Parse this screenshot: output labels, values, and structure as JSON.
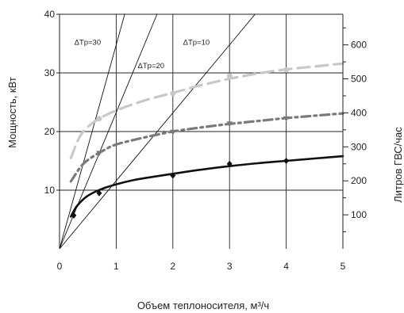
{
  "chart_data": {
    "type": "line",
    "xlabel": "Объем теплоносителя, м³/ч",
    "ylabel": "Мощность, кВт",
    "y2label": "Литров ГВС/час",
    "xlim": [
      0,
      5
    ],
    "ylim": [
      0,
      40
    ],
    "y2lim": [
      0,
      690
    ],
    "x_ticks": [
      0,
      1,
      2,
      3,
      4,
      5
    ],
    "y_ticks": [
      10,
      20,
      30,
      40
    ],
    "y2_ticks": [
      100,
      200,
      300,
      400,
      500,
      600
    ],
    "grid": true,
    "series": [
      {
        "kind": "reference_line",
        "label": "ΔTp=30",
        "x": [
          0,
          1.15
        ],
        "y": [
          0,
          40
        ],
        "color": "#111111"
      },
      {
        "kind": "reference_line",
        "label": "ΔTp=20",
        "x": [
          0,
          1.72
        ],
        "y": [
          0,
          40
        ],
        "color": "#111111"
      },
      {
        "kind": "reference_line",
        "label": "ΔTp=10",
        "x": [
          0,
          3.45
        ],
        "y": [
          0,
          40
        ],
        "color": "#111111"
      },
      {
        "kind": "curve",
        "style": "solid",
        "color": "#111111",
        "marker": "diamond",
        "x": [
          0.2,
          0.3,
          0.45,
          0.6,
          0.8,
          1.0,
          1.3,
          1.6,
          2.0,
          2.5,
          3.0,
          3.5,
          4.0,
          4.5,
          5.0
        ],
        "y": [
          5.5,
          7.2,
          8.7,
          9.6,
          10.4,
          11.0,
          11.7,
          12.2,
          12.8,
          13.5,
          14.1,
          14.6,
          15.0,
          15.4,
          15.8
        ],
        "points_x": [
          0.25,
          0.7,
          2.0,
          3.0,
          4.0
        ],
        "points_y": [
          5.7,
          9.5,
          12.5,
          14.5,
          15.0
        ]
      },
      {
        "kind": "curve",
        "style": "dash-dot",
        "color": "#7a7a7a",
        "marker": "triangle",
        "x": [
          0.2,
          0.4,
          0.6,
          0.8,
          1.0,
          1.5,
          2.0,
          2.5,
          3.0,
          3.5,
          4.0,
          4.5,
          5.0
        ],
        "y": [
          11.5,
          14.3,
          15.8,
          16.9,
          17.8,
          19.0,
          20.0,
          20.7,
          21.3,
          21.8,
          22.3,
          22.7,
          23.1
        ],
        "points_x": [
          0.7,
          2.0,
          3.0,
          4.0
        ],
        "points_y": [
          16.3,
          19.9,
          21.3,
          22.2
        ]
      },
      {
        "kind": "curve",
        "style": "dashed",
        "color": "#c8c8c8",
        "marker": "circle",
        "x": [
          0.2,
          0.35,
          0.5,
          0.7,
          1.0,
          1.5,
          2.0,
          2.5,
          3.0,
          3.5,
          4.0,
          4.5,
          5.0
        ],
        "y": [
          15.5,
          19.0,
          20.8,
          22.2,
          23.6,
          25.3,
          26.6,
          27.9,
          29.0,
          29.9,
          30.6,
          31.1,
          31.6
        ],
        "points_x": [
          0.7,
          2.0,
          3.0,
          4.0
        ],
        "points_y": [
          22.2,
          26.5,
          29.5,
          30.5
        ]
      }
    ]
  }
}
